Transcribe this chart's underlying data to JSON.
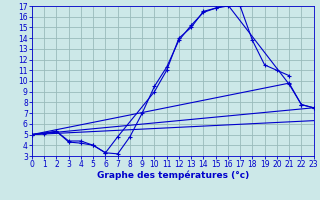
{
  "background_color": "#cce8e8",
  "plot_bg_color": "#cce8e8",
  "grid_color": "#99bbbb",
  "line_color": "#0000cc",
  "xlabel": "Graphe des températures (°c)",
  "xlim": [
    0,
    23
  ],
  "ylim": [
    3,
    17
  ],
  "xticks": [
    0,
    1,
    2,
    3,
    4,
    5,
    6,
    7,
    8,
    9,
    10,
    11,
    12,
    13,
    14,
    15,
    16,
    17,
    18,
    19,
    20,
    21,
    22,
    23
  ],
  "yticks": [
    3,
    4,
    5,
    6,
    7,
    8,
    9,
    10,
    11,
    12,
    13,
    14,
    15,
    16,
    17
  ],
  "curves": [
    {
      "x": [
        0,
        1,
        2,
        3,
        4,
        5,
        6,
        7,
        8,
        9,
        10,
        11,
        12,
        13,
        14,
        15,
        16,
        17,
        18,
        19,
        20,
        21
      ],
      "y": [
        5.0,
        5.1,
        5.3,
        4.3,
        4.2,
        4.0,
        3.3,
        3.2,
        4.8,
        7.0,
        9.5,
        11.3,
        13.8,
        15.2,
        16.4,
        16.8,
        17.0,
        17.0,
        13.8,
        11.5,
        11.0,
        10.5
      ],
      "markers": true
    },
    {
      "x": [
        0,
        2,
        3,
        4,
        5,
        6,
        7,
        10,
        11,
        12,
        13,
        14,
        15,
        16,
        21,
        22,
        23
      ],
      "y": [
        5.0,
        5.3,
        4.4,
        4.4,
        4.0,
        3.3,
        4.8,
        9.0,
        11.0,
        14.0,
        15.0,
        16.5,
        16.8,
        17.1,
        9.7,
        7.8,
        7.5
      ],
      "markers": true
    },
    {
      "x": [
        0,
        23
      ],
      "y": [
        5.0,
        7.5
      ],
      "markers": false
    },
    {
      "x": [
        0,
        21,
        22,
        23
      ],
      "y": [
        5.0,
        9.8,
        7.8,
        7.5
      ],
      "markers": true
    },
    {
      "x": [
        0,
        23
      ],
      "y": [
        5.0,
        6.3
      ],
      "markers": false
    }
  ],
  "tick_fontsize": 5.5,
  "xlabel_fontsize": 6.5,
  "xlabel_bold": true
}
